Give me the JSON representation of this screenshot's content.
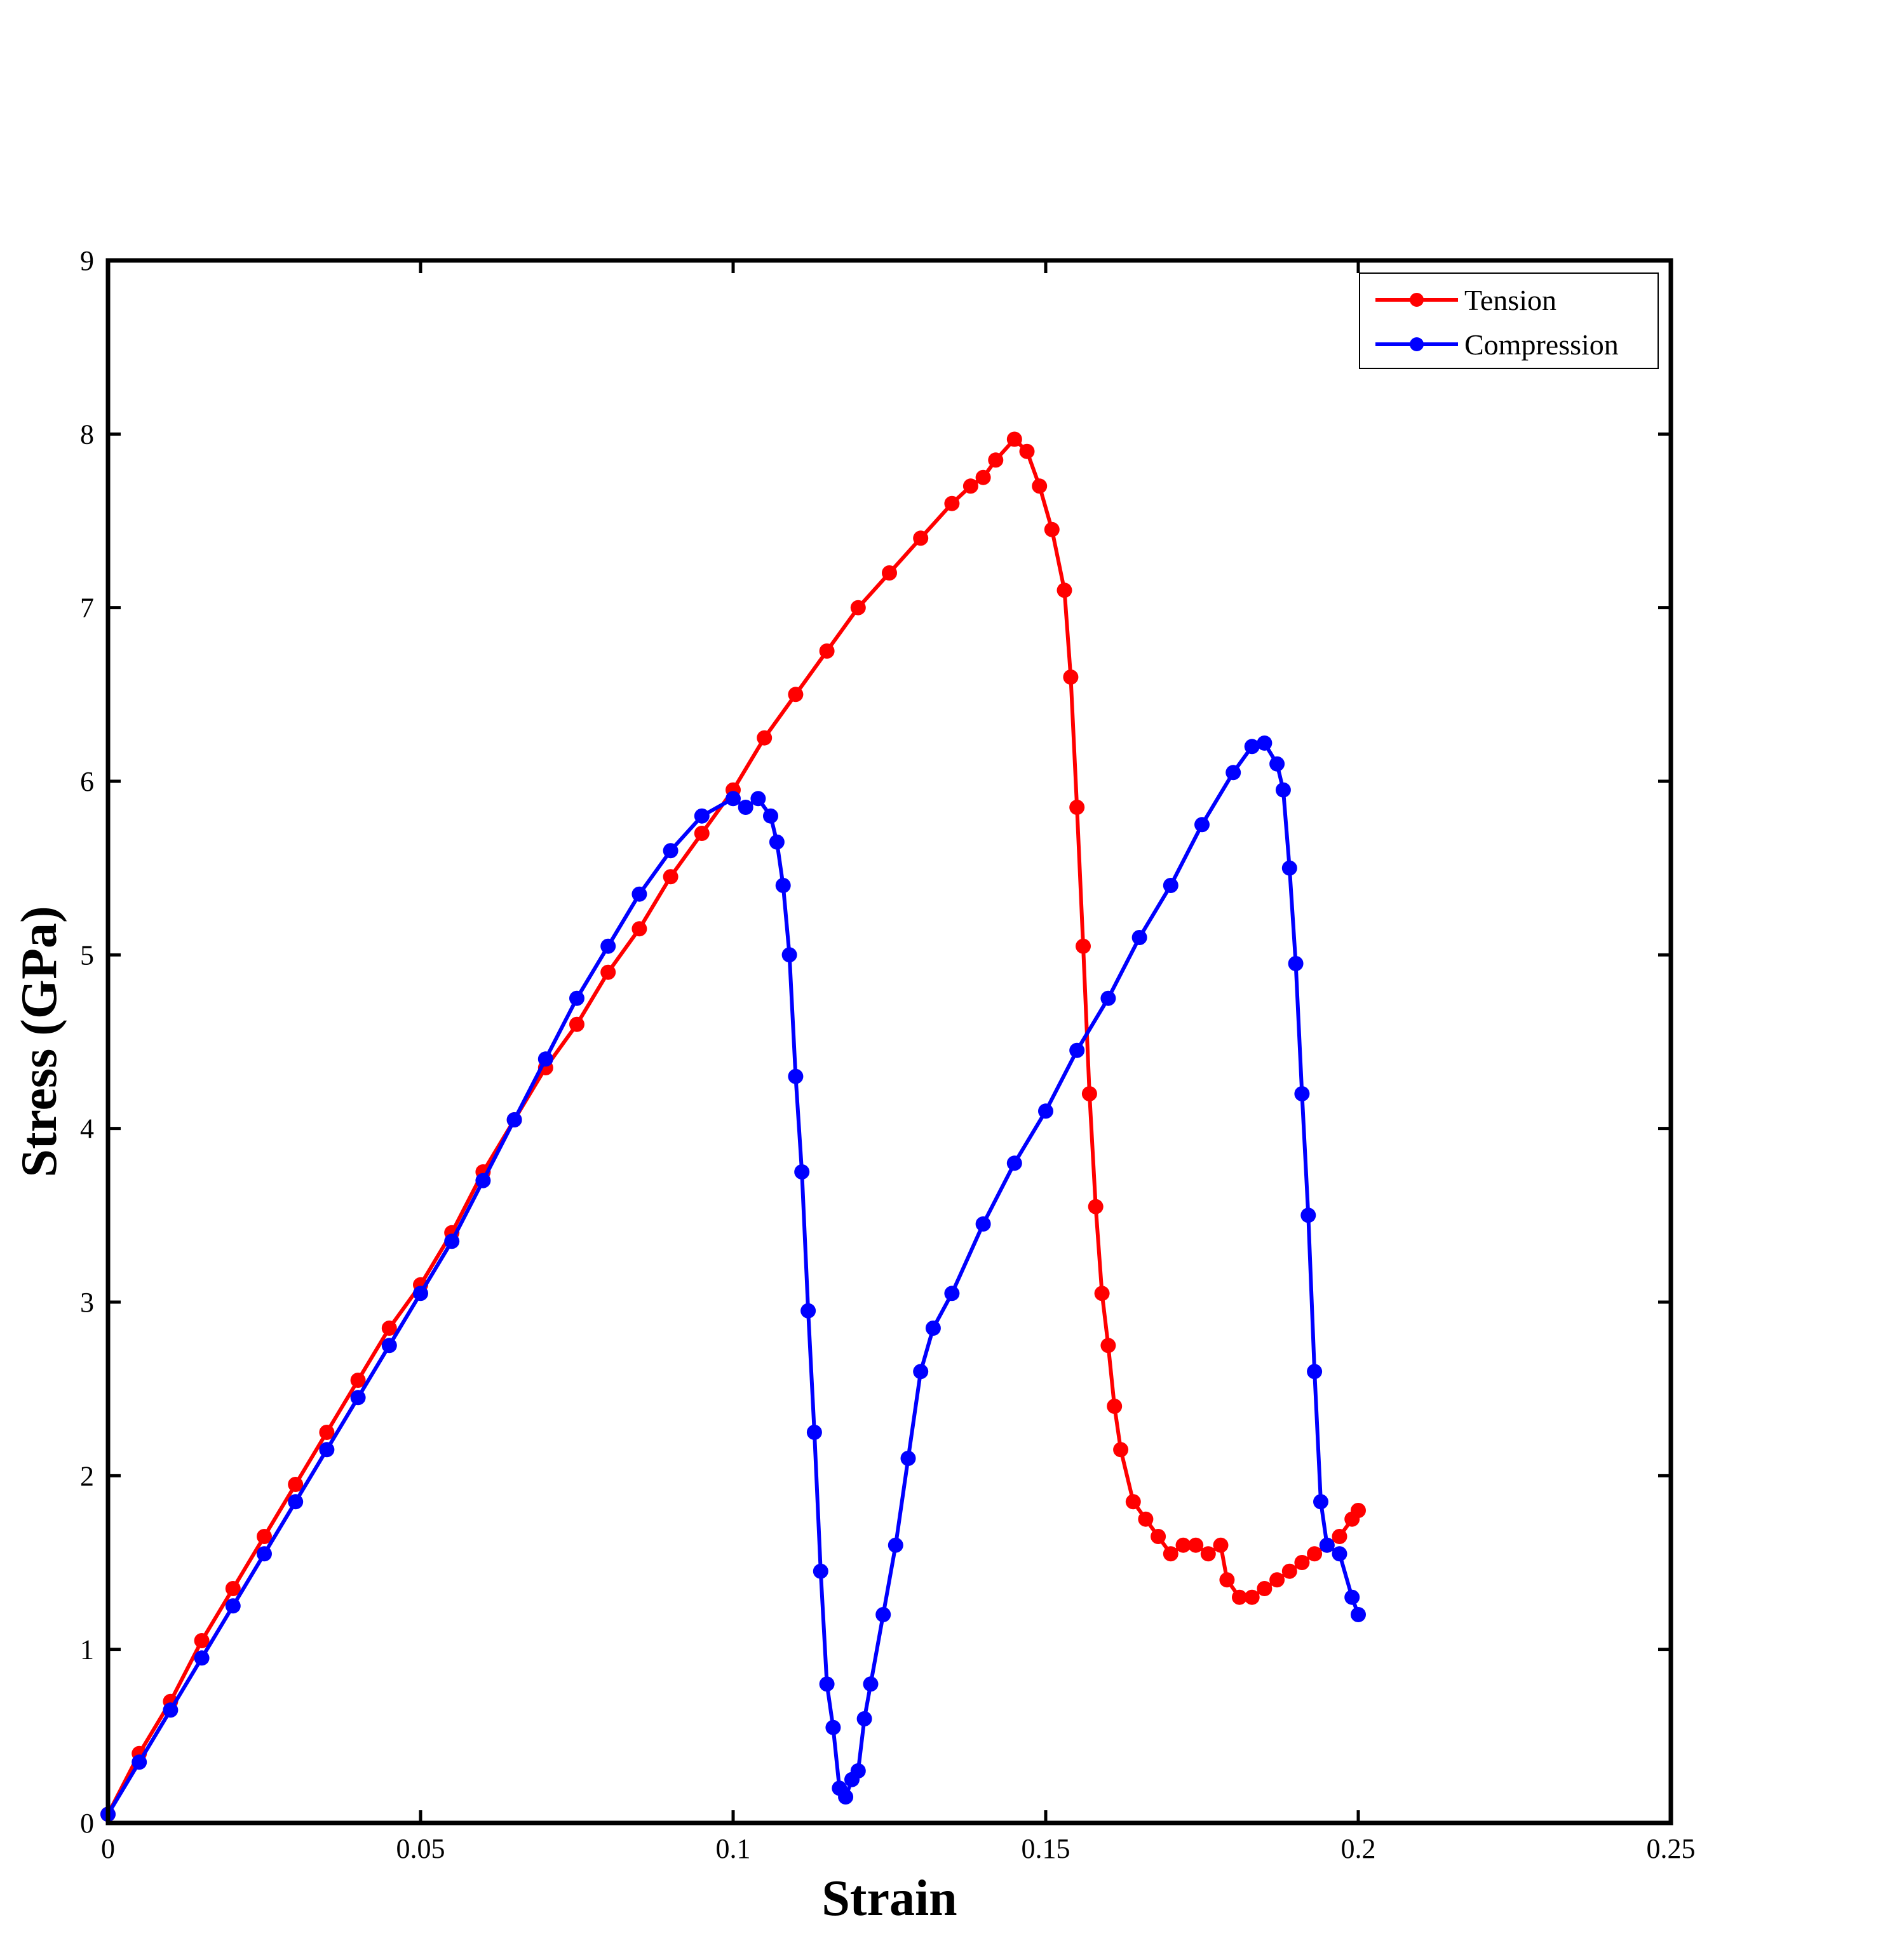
{
  "chart_data": {
    "type": "line",
    "xlabel": "Strain",
    "ylabel": "Stress (GPa)",
    "xlim": [
      0,
      0.25
    ],
    "ylim": [
      0,
      9
    ],
    "xticks": [
      0,
      0.05,
      0.1,
      0.15,
      0.2,
      0.25
    ],
    "xtick_labels": [
      "0",
      "0.05",
      "0.1",
      "0.15",
      "0.2",
      "0.25"
    ],
    "yticks": [
      0,
      1,
      2,
      3,
      4,
      5,
      6,
      7,
      8,
      9
    ],
    "ytick_labels": [
      "0",
      "1",
      "2",
      "3",
      "4",
      "5",
      "6",
      "7",
      "8",
      "9"
    ],
    "grid": false,
    "legend_position": "top-right",
    "series": [
      {
        "name": "Tension",
        "color": "#ff0000",
        "marker": "circle",
        "x": [
          0,
          0.005,
          0.01,
          0.015,
          0.02,
          0.025,
          0.03,
          0.035,
          0.04,
          0.045,
          0.05,
          0.055,
          0.06,
          0.065,
          0.07,
          0.075,
          0.08,
          0.085,
          0.09,
          0.095,
          0.1,
          0.105,
          0.11,
          0.115,
          0.12,
          0.125,
          0.13,
          0.135,
          0.138,
          0.14,
          0.142,
          0.145,
          0.147,
          0.149,
          0.151,
          0.153,
          0.154,
          0.155,
          0.156,
          0.157,
          0.158,
          0.159,
          0.16,
          0.161,
          0.162,
          0.164,
          0.166,
          0.168,
          0.17,
          0.172,
          0.174,
          0.176,
          0.178,
          0.179,
          0.181,
          0.183,
          0.185,
          0.187,
          0.189,
          0.191,
          0.193,
          0.195,
          0.197,
          0.199,
          0.2
        ],
        "y": [
          0.05,
          0.4,
          0.7,
          1.05,
          1.35,
          1.65,
          1.95,
          2.25,
          2.55,
          2.85,
          3.1,
          3.4,
          3.75,
          4.05,
          4.35,
          4.6,
          4.9,
          5.15,
          5.45,
          5.7,
          5.95,
          6.25,
          6.5,
          6.75,
          7.0,
          7.2,
          7.4,
          7.6,
          7.7,
          7.75,
          7.85,
          7.97,
          7.9,
          7.7,
          7.45,
          7.1,
          6.6,
          5.85,
          5.05,
          4.2,
          3.55,
          3.05,
          2.75,
          2.4,
          2.15,
          1.85,
          1.75,
          1.65,
          1.55,
          1.6,
          1.6,
          1.55,
          1.6,
          1.4,
          1.3,
          1.3,
          1.35,
          1.4,
          1.45,
          1.5,
          1.55,
          1.6,
          1.65,
          1.75,
          1.8
        ]
      },
      {
        "name": "Compression",
        "color": "#0000ff",
        "marker": "circle",
        "x": [
          0,
          0.005,
          0.01,
          0.015,
          0.02,
          0.025,
          0.03,
          0.035,
          0.04,
          0.045,
          0.05,
          0.055,
          0.06,
          0.065,
          0.07,
          0.075,
          0.08,
          0.085,
          0.09,
          0.095,
          0.1,
          0.102,
          0.104,
          0.106,
          0.107,
          0.108,
          0.109,
          0.11,
          0.111,
          0.112,
          0.113,
          0.114,
          0.115,
          0.116,
          0.117,
          0.118,
          0.119,
          0.12,
          0.121,
          0.122,
          0.124,
          0.126,
          0.128,
          0.13,
          0.132,
          0.135,
          0.14,
          0.145,
          0.15,
          0.155,
          0.16,
          0.165,
          0.17,
          0.175,
          0.18,
          0.183,
          0.185,
          0.187,
          0.188,
          0.189,
          0.19,
          0.191,
          0.192,
          0.193,
          0.194,
          0.195,
          0.197,
          0.199,
          0.2
        ],
        "y": [
          0.05,
          0.35,
          0.65,
          0.95,
          1.25,
          1.55,
          1.85,
          2.15,
          2.45,
          2.75,
          3.05,
          3.35,
          3.7,
          4.05,
          4.4,
          4.75,
          5.05,
          5.35,
          5.6,
          5.8,
          5.9,
          5.85,
          5.9,
          5.8,
          5.65,
          5.4,
          5.0,
          4.3,
          3.75,
          2.95,
          2.25,
          1.45,
          0.8,
          0.55,
          0.2,
          0.15,
          0.25,
          0.3,
          0.6,
          0.8,
          1.2,
          1.6,
          2.1,
          2.6,
          2.85,
          3.05,
          3.45,
          3.8,
          4.1,
          4.45,
          4.75,
          5.1,
          5.4,
          5.75,
          6.05,
          6.2,
          6.22,
          6.1,
          5.95,
          5.5,
          4.95,
          4.2,
          3.5,
          2.6,
          1.85,
          1.6,
          1.55,
          1.3,
          1.2
        ]
      }
    ]
  }
}
